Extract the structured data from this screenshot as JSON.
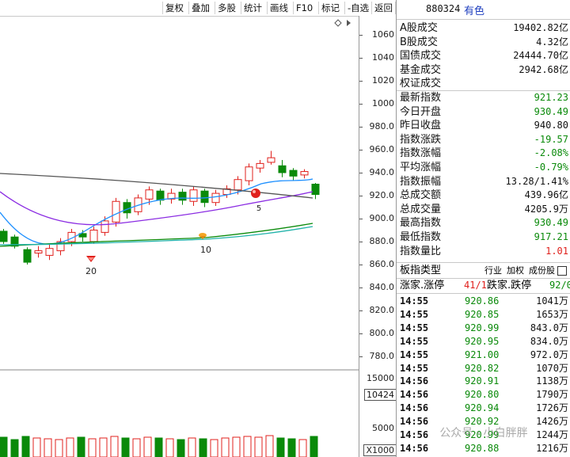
{
  "toolbar": {
    "items": [
      "复权",
      "叠加",
      "多股",
      "统计",
      "画线",
      "F10",
      "标记",
      "-自选",
      "返回"
    ]
  },
  "header": {
    "code": "880324",
    "name": "有色"
  },
  "stats": [
    {
      "label": "A股成交",
      "value": "19402.82亿",
      "color": "#111111"
    },
    {
      "label": "B股成交",
      "value": "4.32亿",
      "color": "#111111"
    },
    {
      "label": "国债成交",
      "value": "24444.70亿",
      "color": "#111111"
    },
    {
      "label": "基金成交",
      "value": "2942.68亿",
      "color": "#111111"
    },
    {
      "label": "权证成交",
      "value": "",
      "color": "#111111"
    },
    {
      "label": "最新指数",
      "value": "921.23",
      "color": "#0a8a0a"
    },
    {
      "label": "今日开盘",
      "value": "930.49",
      "color": "#0a8a0a"
    },
    {
      "label": "昨日收盘",
      "value": "940.80",
      "color": "#111111"
    },
    {
      "label": "指数涨跌",
      "value": "-19.57",
      "color": "#0a8a0a"
    },
    {
      "label": "指数涨幅",
      "value": "-2.08%",
      "color": "#0a8a0a"
    },
    {
      "label": "平均涨幅",
      "value": "-0.79%",
      "color": "#0a8a0a"
    },
    {
      "label": "指数振幅",
      "value": "13.28/1.41%",
      "color": "#111111"
    },
    {
      "label": "总成交额",
      "value": "439.96亿",
      "color": "#111111"
    },
    {
      "label": "总成交量",
      "value": "4205.9万",
      "color": "#111111"
    },
    {
      "label": "最高指数",
      "value": "930.49",
      "color": "#0a8a0a"
    },
    {
      "label": "最低指数",
      "value": "917.21",
      "color": "#0a8a0a"
    },
    {
      "label": "指数量比",
      "value": "1.01",
      "color": "#e0201c"
    }
  ],
  "plate": {
    "label": "板指类型",
    "links": [
      "行业",
      "加权",
      "成份股"
    ]
  },
  "updown": {
    "up_label": "涨家.涨停",
    "up_value": "41/1",
    "down_label": "跌家.跌停",
    "down_value": "92/0"
  },
  "ticks": [
    {
      "time": "14:55",
      "price": "920.86",
      "vol": "1041万"
    },
    {
      "time": "14:55",
      "price": "920.85",
      "vol": "1653万"
    },
    {
      "time": "14:55",
      "price": "920.99",
      "vol": "843.0万"
    },
    {
      "time": "14:55",
      "price": "920.95",
      "vol": "834.0万"
    },
    {
      "time": "14:55",
      "price": "921.00",
      "vol": "972.0万"
    },
    {
      "time": "14:55",
      "price": "920.82",
      "vol": "1070万"
    },
    {
      "time": "14:56",
      "price": "920.91",
      "vol": "1138万"
    },
    {
      "time": "14:56",
      "price": "920.80",
      "vol": "1790万"
    },
    {
      "time": "14:56",
      "price": "920.94",
      "vol": "1726万"
    },
    {
      "time": "14:56",
      "price": "920.92",
      "vol": "1426万"
    },
    {
      "time": "14:56",
      "price": "920.99",
      "vol": "1244万"
    },
    {
      "time": "14:56",
      "price": "920.88",
      "vol": "1216万"
    }
  ],
  "axis": {
    "price_ticks": [
      "1060",
      "1040",
      "1020",
      "1000",
      "980.0",
      "960.0",
      "940.0",
      "920.0",
      "900.0",
      "880.0",
      "860.0",
      "840.0",
      "820.0",
      "800.0",
      "780.0"
    ],
    "vol_ticks": [
      "15000",
      "10424",
      "5000"
    ],
    "vol_unit": "X1000"
  },
  "annotations": {
    "low_marker": "20",
    "mid_marker": "10",
    "ma_marker": "5"
  },
  "watermark": "公众号 · 小白胖胖"
}
